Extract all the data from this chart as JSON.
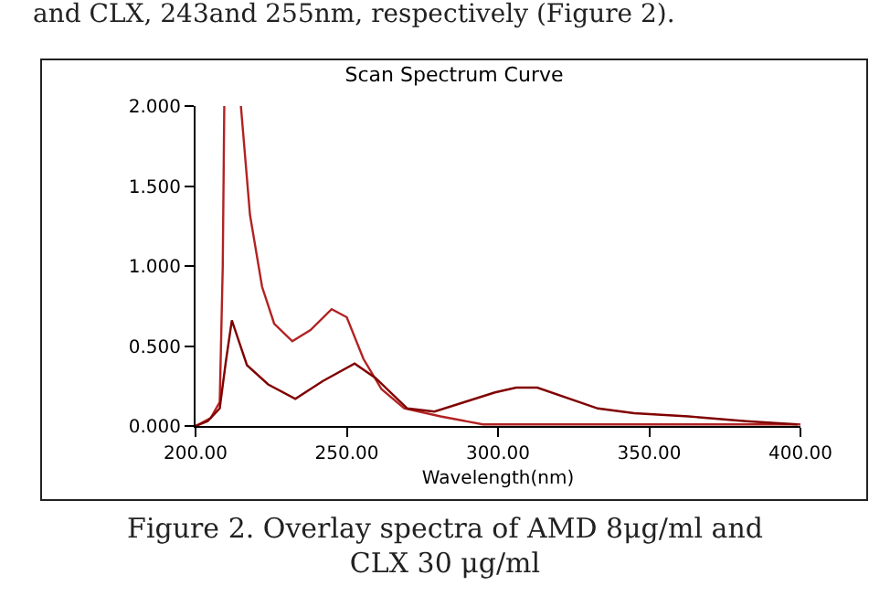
{
  "chart_data": {
    "type": "line",
    "title": "Scan Spectrum Curve",
    "xlabel": "Wavelength(nm)",
    "annotations": [
      "and CLX, 243and 255nm, respectively (Figure 2).",
      "Figure 2. Overlay spectra of AMD 8μg/ml and CLX 30 μg/ml"
    ],
    "series": [
      {
        "color": "#b22222",
        "x": [
          200,
          205,
          208,
          209,
          209.5,
          212,
          215,
          218,
          222,
          226,
          232,
          238,
          245,
          250,
          255.5,
          261.5,
          269,
          281,
          295,
          315,
          340,
          370,
          400
        ],
        "values": [
          0,
          0.05,
          0.15,
          1.0,
          2.0,
          null,
          2.0,
          1.32,
          0.87,
          0.64,
          0.53,
          0.6,
          0.73,
          0.68,
          0.42,
          0.23,
          0.11,
          0.06,
          0.01,
          0.01,
          0.01,
          0.01,
          0.01
        ]
      },
      {
        "color": "#800000",
        "x": [
          200,
          204,
          208,
          210,
          212,
          217,
          224,
          233,
          242,
          252.6,
          259.5,
          270,
          279,
          289,
          299,
          306,
          313,
          333,
          345,
          363,
          382,
          399
        ],
        "values": [
          0,
          0.03,
          0.11,
          0.4,
          0.66,
          0.38,
          0.26,
          0.17,
          0.28,
          0.39,
          0.3,
          0.11,
          0.09,
          0.15,
          0.21,
          0.24,
          0.24,
          0.11,
          0.08,
          0.06,
          0.03,
          0.01
        ]
      }
    ],
    "xlim": [
      200,
      400
    ],
    "xticks": [
      {
        "value": 200,
        "label": "200.00"
      },
      {
        "value": 250,
        "label": "250.00"
      },
      {
        "value": 300,
        "label": "300.00"
      },
      {
        "value": 350,
        "label": "350.00"
      },
      {
        "value": 400,
        "label": "400.00"
      }
    ],
    "ylim": [
      0,
      2
    ],
    "yticks": [
      {
        "value": 0,
        "label": "0.000"
      },
      {
        "value": 0.5,
        "label": "0.500"
      },
      {
        "value": 1,
        "label": "1.000"
      },
      {
        "value": 1.5,
        "label": "1.500"
      },
      {
        "value": 2,
        "label": "2.000"
      }
    ],
    "grid": false,
    "line_style": "solid",
    "marker": "none"
  }
}
